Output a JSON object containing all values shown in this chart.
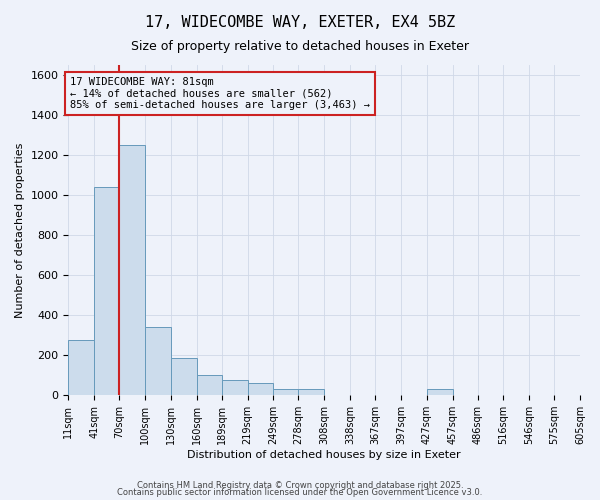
{
  "title_line1": "17, WIDECOMBE WAY, EXETER, EX4 5BZ",
  "title_line2": "Size of property relative to detached houses in Exeter",
  "xlabel": "Distribution of detached houses by size in Exeter",
  "ylabel": "Number of detached properties",
  "bar_color": "#ccdcec",
  "bar_edge_color": "#6699bb",
  "background_color": "#eef2fa",
  "grid_color": "#d0d8e8",
  "red_line_color": "#cc2222",
  "annotation_box_color": "#cc2222",
  "annotation_text": "17 WIDECOMBE WAY: 81sqm\n← 14% of detached houses are smaller (562)\n85% of semi-detached houses are larger (3,463) →",
  "red_line_x": 70,
  "bin_edges": [
    11,
    41,
    70,
    100,
    130,
    160,
    189,
    219,
    249,
    278,
    308,
    338,
    367,
    397,
    427,
    457,
    486,
    516,
    546,
    575,
    605
  ],
  "bar_heights": [
    275,
    1040,
    1250,
    340,
    185,
    100,
    75,
    60,
    30,
    30,
    0,
    0,
    0,
    0,
    30,
    0,
    0,
    0,
    0,
    0
  ],
  "ylim": [
    0,
    1650
  ],
  "yticks": [
    0,
    200,
    400,
    600,
    800,
    1000,
    1200,
    1400,
    1600
  ],
  "footer_line1": "Contains HM Land Registry data © Crown copyright and database right 2025.",
  "footer_line2": "Contains public sector information licensed under the Open Government Licence v3.0."
}
